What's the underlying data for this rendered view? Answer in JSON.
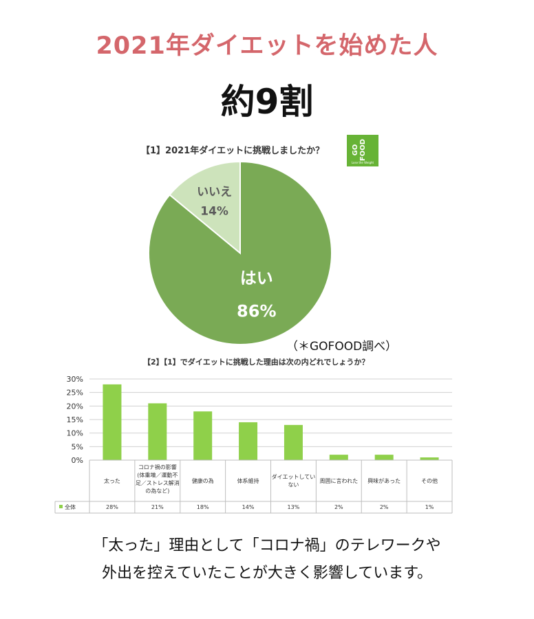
{
  "headline": "2021年ダイエットを始めた人",
  "subhead": "約9割",
  "logo": {
    "text": "GO FOOD",
    "small": "Lose the Weight"
  },
  "source": "（＊GOFOOD調べ）",
  "footer": {
    "line1": "「太った」理由として「コロナ禍」のテレワークや",
    "line2": "外出を控えていたことが大きく影響しています。"
  },
  "colors": {
    "headline": "#d4666b",
    "pie_yes": "#7aaa55",
    "pie_no": "#cde3bb",
    "bar": "#8fd04a",
    "logo": "#67b336"
  },
  "chart_data": [
    {
      "type": "pie",
      "title": "【1】2021年ダイエットに挑戦しましたか？",
      "slices": [
        {
          "label": "はい",
          "value": 86,
          "value_label": "86%"
        },
        {
          "label": "いいえ",
          "value": 14,
          "value_label": "14%"
        }
      ]
    },
    {
      "type": "bar",
      "title": "【2】【1】でダイエットに挑戦した理由は次の内どれでしょうか？",
      "series_name": "全体",
      "categories": [
        "太った",
        "コロナ禍の影響(体重増／運動不足／ストレス解消の為など)",
        "健康の為",
        "体系維持",
        "ダイエットしていない",
        "周囲に言われた",
        "興味があった",
        "その他"
      ],
      "category_lines": [
        [
          "太った"
        ],
        [
          "コロナ禍の影響",
          "(体重増／運動不",
          "足／ストレス解消",
          "の為など)"
        ],
        [
          "健康の為"
        ],
        [
          "体系維持"
        ],
        [
          "ダイエットしてい",
          "ない"
        ],
        [
          "周囲に言われた"
        ],
        [
          "興味があった"
        ],
        [
          "その他"
        ]
      ],
      "values": [
        28,
        21,
        18,
        14,
        13,
        2,
        2,
        1
      ],
      "value_labels": [
        "28%",
        "21%",
        "18%",
        "14%",
        "13%",
        "2%",
        "2%",
        "1%"
      ],
      "ylim": [
        0,
        30
      ],
      "yticks": [
        "0%",
        "5%",
        "10%",
        "15%",
        "20%",
        "25%",
        "30%"
      ],
      "grid": true
    }
  ]
}
